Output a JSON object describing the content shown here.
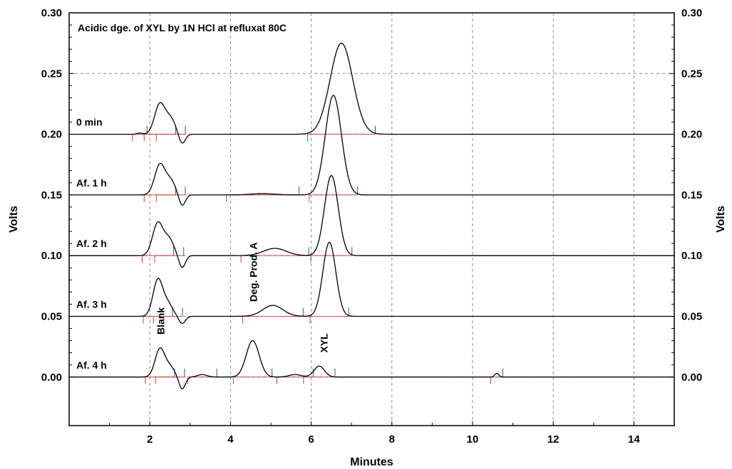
{
  "chart_data": {
    "type": "line",
    "title": "Acidic dge. of XYL by 1N HCl at refluxat 80C",
    "xlabel": "Minutes",
    "ylabel": "Volts",
    "ylabel_right": "Volts",
    "xlim": [
      0,
      15
    ],
    "ylim": [
      -0.04,
      0.3
    ],
    "x_ticks": [
      2,
      4,
      6,
      8,
      10,
      12,
      14
    ],
    "y_ticks": [
      0.0,
      0.05,
      0.1,
      0.15,
      0.2,
      0.25,
      0.3
    ],
    "y_tick_labels": [
      "0.00",
      "0.05",
      "0.10",
      "0.15",
      "0.20",
      "0.25",
      "0.30"
    ],
    "grid": true,
    "series": [
      {
        "name": "0 min",
        "baseline": 0.2,
        "peaks": [
          [
            1.75,
            0.001,
            0.06
          ],
          [
            2.25,
            0.025,
            0.13
          ],
          [
            2.52,
            0.012,
            0.12
          ],
          [
            2.8,
            -0.008,
            0.08
          ],
          [
            6.75,
            0.075,
            0.28
          ]
        ]
      },
      {
        "name": "Af. 1 h",
        "baseline": 0.15,
        "peaks": [
          [
            2.25,
            0.025,
            0.13
          ],
          [
            2.52,
            0.011,
            0.12
          ],
          [
            2.8,
            -0.009,
            0.08
          ],
          [
            4.8,
            0.001,
            0.3
          ],
          [
            6.55,
            0.082,
            0.2
          ]
        ]
      },
      {
        "name": "Af. 2 h",
        "baseline": 0.1,
        "peaks": [
          [
            2.2,
            0.027,
            0.13
          ],
          [
            2.48,
            0.013,
            0.12
          ],
          [
            2.8,
            -0.01,
            0.08
          ],
          [
            5.1,
            0.006,
            0.28
          ],
          [
            6.5,
            0.066,
            0.17
          ]
        ]
      },
      {
        "name": "Af. 3 h",
        "baseline": 0.05,
        "peaks": [
          [
            2.2,
            0.03,
            0.12
          ],
          [
            2.45,
            0.01,
            0.12
          ],
          [
            2.8,
            -0.006,
            0.08
          ],
          [
            5.05,
            0.009,
            0.25
          ],
          [
            6.45,
            0.061,
            0.16
          ]
        ]
      },
      {
        "name": "Af. 4 h",
        "baseline": 0.0,
        "peaks": [
          [
            2.25,
            0.023,
            0.12
          ],
          [
            2.5,
            0.008,
            0.12
          ],
          [
            2.8,
            -0.01,
            0.08
          ],
          [
            3.3,
            0.002,
            0.12
          ],
          [
            4.55,
            0.03,
            0.16
          ],
          [
            5.6,
            0.002,
            0.15
          ],
          [
            6.2,
            0.009,
            0.13
          ],
          [
            10.6,
            0.003,
            0.05
          ]
        ]
      }
    ],
    "annotations": [
      {
        "text": "Blank",
        "x": 2.25,
        "y": 0.035,
        "rotation": -90
      },
      {
        "text": "Deg. Prod. A",
        "x": 4.55,
        "y": 0.062,
        "rotation": -90
      },
      {
        "text": "XYL",
        "x": 6.3,
        "y": 0.02,
        "rotation": -90
      }
    ]
  }
}
